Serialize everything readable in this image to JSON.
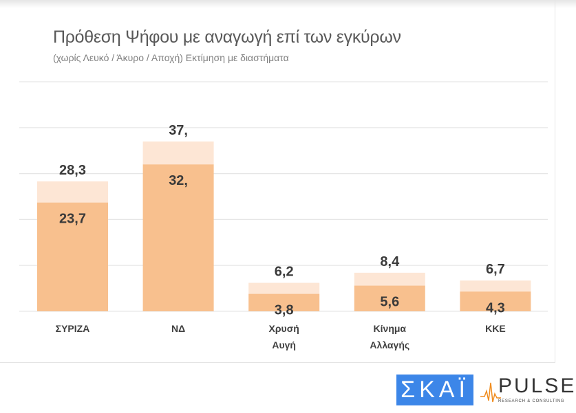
{
  "title": "Πρόθεση Ψήφου με αναγωγή επί των εγκύρων",
  "subtitle": "(χωρίς Λευκό / Άκυρο / Αποχή)   Εκτίμηση με διαστήματα",
  "logos": {
    "skai": "ΣΚΑΪ",
    "pulse": "PULSE",
    "pulse_tagline": "RESEARCH & CONSULTING"
  },
  "colors": {
    "low": "#f8c08e",
    "high": "#fde6d5"
  },
  "chart_data": {
    "type": "bar",
    "categories": [
      [
        "ΣΥΡΙΖΑ"
      ],
      [
        "ΝΔ"
      ],
      [
        "Χρυσή",
        "Αυγή"
      ],
      [
        "Κίνημα",
        "Αλλαγής"
      ],
      [
        "ΚΚΕ"
      ]
    ],
    "series": [
      {
        "values": [
          23.7,
          32,
          3.8,
          5.6,
          4.3
        ],
        "labels": [
          "23,7",
          "32,",
          "3,8",
          "5,6",
          "4,3"
        ]
      },
      {
        "values": [
          28.3,
          37,
          6.2,
          8.4,
          6.7
        ],
        "labels": [
          "28,3",
          "37,",
          "6,2",
          "8,4",
          "6,7"
        ]
      }
    ],
    "ylim": [
      0,
      50
    ],
    "gridlines": [
      0,
      10,
      20,
      30,
      40,
      50
    ],
    "grid": true
  }
}
